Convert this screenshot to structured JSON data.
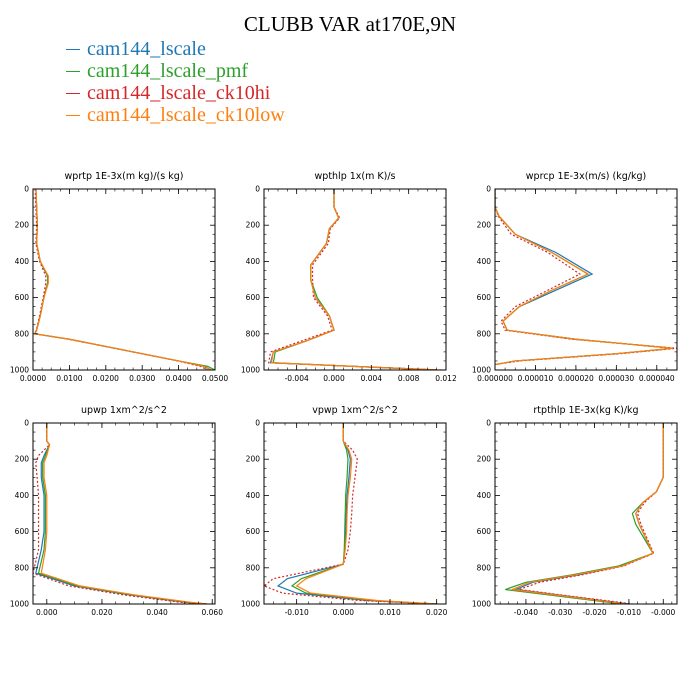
{
  "title": "CLUBB VAR at170E,9N",
  "legend": [
    {
      "name": "cam144_lscale",
      "color": "#1f77b4"
    },
    {
      "name": "cam144_lscale_pmf",
      "color": "#2ca02c"
    },
    {
      "name": "cam144_lscale_ck10hi",
      "color": "#d62728"
    },
    {
      "name": "cam144_lscale_ck10low",
      "color": "#ff7f0e"
    }
  ],
  "chart_data": [
    {
      "type": "line",
      "title": "wprtp  1E-3x(m kg)/(s kg)",
      "xlim": [
        0,
        0.05
      ],
      "ylim": [
        1000,
        0
      ],
      "xticks": [
        0,
        0.01,
        0.02,
        0.03,
        0.04,
        0.05
      ],
      "xtick_labels": [
        "0.0000",
        "0.0100",
        "0.0200",
        "0.0300",
        "0.0400",
        "0.0500"
      ],
      "yticks": [
        0,
        200,
        400,
        600,
        800,
        1000
      ],
      "ytick_labels": [
        "0",
        "200",
        "400",
        "600",
        "800",
        "1000"
      ],
      "series": [
        {
          "name": "cam144_lscale",
          "x": [
            0.0008,
            0.001,
            0.0012,
            0.001,
            0.002,
            0.004,
            0.004,
            0.003,
            0.002,
            0.001,
            0.0005,
            0.01,
            0.02,
            0.03,
            0.04,
            0.047,
            0.049
          ],
          "y": [
            0,
            100,
            200,
            300,
            400,
            480,
            520,
            600,
            700,
            780,
            800,
            830,
            870,
            910,
            950,
            980,
            1000
          ]
        },
        {
          "name": "cam144_lscale_pmf",
          "x": [
            0.0008,
            0.001,
            0.0012,
            0.001,
            0.002,
            0.004,
            0.004,
            0.003,
            0.002,
            0.001,
            0.0005,
            0.01,
            0.02,
            0.03,
            0.04,
            0.048,
            0.05
          ],
          "y": [
            0,
            100,
            200,
            300,
            400,
            480,
            520,
            600,
            700,
            780,
            800,
            830,
            870,
            910,
            950,
            980,
            1000
          ]
        },
        {
          "name": "cam144_lscale_ck10hi",
          "x": [
            0.0006,
            0.0008,
            0.001,
            0.0008,
            0.0018,
            0.0035,
            0.0035,
            0.0028,
            0.0018,
            0.0009,
            0.0004,
            0.0098,
            0.0198,
            0.0298,
            0.0398,
            0.046,
            0.048
          ],
          "y": [
            0,
            100,
            200,
            300,
            400,
            480,
            520,
            600,
            700,
            780,
            800,
            830,
            870,
            910,
            950,
            980,
            1000
          ]
        },
        {
          "name": "cam144_lscale_ck10low",
          "x": [
            0.0008,
            0.001,
            0.0012,
            0.001,
            0.002,
            0.0042,
            0.0042,
            0.003,
            0.002,
            0.001,
            0.0005,
            0.01,
            0.02,
            0.03,
            0.04,
            0.047,
            0.049
          ],
          "y": [
            0,
            100,
            200,
            300,
            400,
            480,
            520,
            600,
            700,
            780,
            800,
            830,
            870,
            910,
            950,
            980,
            1000
          ]
        }
      ]
    },
    {
      "type": "line",
      "title": "wpthlp  1x(m K)/s",
      "xlim": [
        -0.0075,
        0.012
      ],
      "ylim": [
        1000,
        0
      ],
      "xticks": [
        -0.004,
        0,
        0.004,
        0.008,
        0.012
      ],
      "xtick_labels": [
        "-0.004",
        "0.000",
        "0.004",
        "0.008",
        "0.012"
      ],
      "yticks": [
        0,
        200,
        400,
        600,
        800,
        1000
      ],
      "ytick_labels": [
        "0",
        "200",
        "400",
        "600",
        "800",
        "1000"
      ],
      "series": [
        {
          "name": "cam144_lscale",
          "x": [
            0,
            0,
            0.0005,
            -0.0005,
            -0.0008,
            -0.0025,
            -0.0025,
            -0.002,
            -0.0005,
            0,
            -0.003,
            -0.0065,
            -0.0068,
            0.011
          ],
          "y": [
            0,
            100,
            160,
            220,
            300,
            420,
            500,
            600,
            700,
            780,
            840,
            900,
            960,
            1000
          ]
        },
        {
          "name": "cam144_lscale_pmf",
          "x": [
            0,
            0,
            0.0005,
            -0.0005,
            -0.0008,
            -0.0025,
            -0.0025,
            -0.0018,
            -0.0005,
            0,
            -0.003,
            -0.0063,
            -0.0065,
            0.011
          ],
          "y": [
            0,
            100,
            160,
            220,
            300,
            420,
            500,
            600,
            700,
            780,
            840,
            900,
            960,
            1000
          ]
        },
        {
          "name": "cam144_lscale_ck10hi",
          "x": [
            0,
            0,
            0.0006,
            -0.0004,
            -0.0006,
            -0.0023,
            -0.0023,
            -0.0022,
            -0.0007,
            -0.0002,
            -0.0035,
            -0.0068,
            -0.007,
            0.0115
          ],
          "y": [
            0,
            100,
            160,
            220,
            300,
            420,
            500,
            600,
            700,
            780,
            840,
            900,
            960,
            1000
          ]
        },
        {
          "name": "cam144_lscale_ck10low",
          "x": [
            0,
            0,
            0.0005,
            -0.0005,
            -0.0008,
            -0.0025,
            -0.0025,
            -0.002,
            -0.0005,
            0,
            -0.003,
            -0.0065,
            -0.0067,
            0.011
          ],
          "y": [
            0,
            100,
            160,
            220,
            300,
            420,
            500,
            600,
            700,
            780,
            840,
            900,
            960,
            1000
          ]
        }
      ]
    },
    {
      "type": "line",
      "title": "wprcp  1E-3x(m/s) (kg/kg)",
      "xlim": [
        0,
        4.5e-05
      ],
      "ylim": [
        1000,
        0
      ],
      "xticks": [
        0,
        1e-05,
        2e-05,
        3e-05,
        4e-05
      ],
      "xtick_labels": [
        "0.000000",
        "0.000010",
        "0.000020",
        "0.000030",
        "0.000040"
      ],
      "yticks": [
        0,
        200,
        400,
        600,
        800,
        1000
      ],
      "ytick_labels": [
        "0",
        "200",
        "400",
        "600",
        "800",
        "1000"
      ],
      "series": [
        {
          "name": "cam144_lscale",
          "x": [
            0,
            0,
            1e-06,
            5e-06,
            1.5e-05,
            2.4e-05,
            1.5e-05,
            6e-06,
            2e-06,
            3e-06,
            2e-05,
            4.4e-05,
            3e-05,
            5e-06,
            0
          ],
          "y": [
            0,
            100,
            150,
            250,
            350,
            470,
            560,
            650,
            730,
            780,
            830,
            880,
            910,
            950,
            970
          ]
        },
        {
          "name": "cam144_lscale_pmf",
          "x": [
            0,
            0,
            1e-06,
            5e-06,
            1.4e-05,
            2.3e-05,
            1.4e-05,
            6e-06,
            2e-06,
            3e-06,
            2e-05,
            4.4e-05,
            3e-05,
            5e-06,
            0
          ],
          "y": [
            0,
            100,
            150,
            250,
            350,
            470,
            560,
            650,
            730,
            780,
            830,
            880,
            910,
            950,
            970
          ]
        },
        {
          "name": "cam144_lscale_ck10hi",
          "x": [
            0,
            0,
            8e-07,
            4e-06,
            1.3e-05,
            2.1e-05,
            1.3e-05,
            5e-06,
            1.5e-06,
            2.5e-06,
            1.9e-05,
            4.5e-05,
            3.1e-05,
            6e-06,
            0
          ],
          "y": [
            0,
            100,
            150,
            250,
            350,
            470,
            560,
            650,
            730,
            780,
            830,
            880,
            910,
            950,
            970
          ]
        },
        {
          "name": "cam144_lscale_ck10low",
          "x": [
            0,
            0,
            1e-06,
            5e-06,
            1.4e-05,
            2.3e-05,
            1.4e-05,
            6e-06,
            2e-06,
            3e-06,
            2e-05,
            4.4e-05,
            3e-05,
            5e-06,
            0
          ],
          "y": [
            0,
            100,
            150,
            250,
            350,
            470,
            560,
            650,
            730,
            780,
            830,
            880,
            910,
            950,
            970
          ]
        }
      ]
    },
    {
      "type": "line",
      "title": "upwp  1xm^2/s^2",
      "xlim": [
        -0.005,
        0.061
      ],
      "ylim": [
        1000,
        0
      ],
      "xticks": [
        0,
        0.02,
        0.04,
        0.06
      ],
      "xtick_labels": [
        "0.000",
        "0.020",
        "0.040",
        "0.060"
      ],
      "yticks": [
        0,
        200,
        400,
        600,
        800,
        1000
      ],
      "ytick_labels": [
        "0",
        "200",
        "400",
        "600",
        "800",
        "1000"
      ],
      "series": [
        {
          "name": "cam144_lscale",
          "x": [
            0,
            0,
            0.001,
            -0.001,
            -0.002,
            -0.002,
            -0.001,
            -0.001,
            -0.001,
            -0.002,
            -0.004,
            0.01,
            0.03,
            0.05,
            0.058
          ],
          "y": [
            0,
            100,
            120,
            180,
            220,
            300,
            400,
            500,
            600,
            700,
            830,
            900,
            950,
            990,
            1000
          ]
        },
        {
          "name": "cam144_lscale_pmf",
          "x": [
            0,
            0,
            0.001,
            -0.0005,
            -0.0015,
            -0.0015,
            -0.0005,
            -0.0005,
            -0.0005,
            -0.001,
            -0.003,
            0.011,
            0.031,
            0.051,
            0.058
          ],
          "y": [
            0,
            100,
            120,
            180,
            220,
            300,
            400,
            500,
            600,
            700,
            830,
            900,
            950,
            990,
            1000
          ]
        },
        {
          "name": "cam144_lscale_ck10hi",
          "x": [
            0,
            0,
            0.001,
            -0.003,
            -0.004,
            -0.0035,
            -0.003,
            -0.003,
            -0.003,
            -0.003,
            -0.005,
            0.008,
            0.028,
            0.048,
            0.058
          ],
          "y": [
            0,
            100,
            120,
            180,
            220,
            300,
            400,
            500,
            600,
            700,
            830,
            900,
            950,
            990,
            1000
          ]
        },
        {
          "name": "cam144_lscale_ck10low",
          "x": [
            0,
            0,
            0.001,
            0,
            -0.001,
            -0.001,
            0,
            0,
            0,
            -0.0005,
            -0.002,
            0.012,
            0.032,
            0.052,
            0.058
          ],
          "y": [
            0,
            100,
            120,
            180,
            220,
            300,
            400,
            500,
            600,
            700,
            830,
            900,
            950,
            990,
            1000
          ]
        }
      ]
    },
    {
      "type": "line",
      "title": "vpwp  1xm^2/s^2",
      "xlim": [
        -0.017,
        0.022
      ],
      "ylim": [
        1000,
        0
      ],
      "xticks": [
        -0.01,
        0,
        0.01,
        0.02
      ],
      "xtick_labels": [
        "-0.010",
        "0.000",
        "0.010",
        "0.020"
      ],
      "yticks": [
        0,
        200,
        400,
        600,
        800,
        1000
      ],
      "ytick_labels": [
        "0",
        "200",
        "400",
        "600",
        "800",
        "1000"
      ],
      "series": [
        {
          "name": "cam144_lscale",
          "x": [
            0,
            0,
            0.001,
            0.0015,
            0.0012,
            0.0008,
            0.0006,
            0.0005,
            0.0003,
            0,
            -0.012,
            -0.014,
            -0.01,
            0.005,
            0.02
          ],
          "y": [
            0,
            100,
            150,
            200,
            300,
            400,
            500,
            600,
            700,
            780,
            860,
            900,
            940,
            980,
            1000
          ]
        },
        {
          "name": "cam144_lscale_pmf",
          "x": [
            0,
            0,
            0.0007,
            0.001,
            0.0008,
            0.0005,
            0.0004,
            0.0003,
            0.0002,
            0,
            -0.009,
            -0.011,
            -0.008,
            0.006,
            0.02
          ],
          "y": [
            0,
            100,
            150,
            200,
            300,
            400,
            500,
            600,
            700,
            780,
            860,
            900,
            940,
            980,
            1000
          ]
        },
        {
          "name": "cam144_lscale_ck10hi",
          "x": [
            0,
            0,
            0.002,
            0.003,
            0.0025,
            0.002,
            0.0018,
            0.0015,
            0.001,
            0,
            -0.015,
            -0.017,
            -0.013,
            0.003,
            0.02
          ],
          "y": [
            0,
            100,
            150,
            200,
            300,
            400,
            500,
            600,
            700,
            780,
            860,
            900,
            940,
            980,
            1000
          ]
        },
        {
          "name": "cam144_lscale_ck10low",
          "x": [
            0,
            0,
            0.0012,
            0.0018,
            0.0015,
            0.001,
            0.0008,
            0.0007,
            0.0004,
            0,
            -0.008,
            -0.01,
            -0.007,
            0.007,
            0.02
          ],
          "y": [
            0,
            100,
            150,
            200,
            300,
            400,
            500,
            600,
            700,
            780,
            860,
            900,
            940,
            980,
            1000
          ]
        }
      ]
    },
    {
      "type": "line",
      "title": "rtpthlp  1E-3x(kg K)/kg",
      "xlim": [
        -0.049,
        0.004
      ],
      "ylim": [
        1000,
        0
      ],
      "xticks": [
        -0.04,
        -0.03,
        -0.02,
        -0.01,
        0
      ],
      "xtick_labels": [
        "-0.040",
        "-0.030",
        "-0.020",
        "-0.010",
        "-0.000"
      ],
      "yticks": [
        0,
        200,
        400,
        600,
        800,
        1000
      ],
      "ytick_labels": [
        "0",
        "200",
        "400",
        "600",
        "800",
        "1000"
      ],
      "series": [
        {
          "name": "cam144_lscale",
          "x": [
            0,
            0,
            0,
            -0.002,
            -0.006,
            -0.008,
            -0.007,
            -0.003,
            -0.012,
            -0.025,
            -0.038,
            -0.043,
            -0.01
          ],
          "y": [
            0,
            200,
            300,
            380,
            440,
            500,
            560,
            720,
            790,
            840,
            880,
            920,
            1000
          ]
        },
        {
          "name": "cam144_lscale_pmf",
          "x": [
            0,
            0,
            0,
            -0.002,
            -0.006,
            -0.009,
            -0.008,
            -0.003,
            -0.013,
            -0.027,
            -0.04,
            -0.046,
            -0.012
          ],
          "y": [
            0,
            200,
            300,
            380,
            440,
            500,
            560,
            720,
            790,
            840,
            880,
            920,
            1000
          ]
        },
        {
          "name": "cam144_lscale_ck10hi",
          "x": [
            0,
            0,
            0,
            -0.002,
            -0.0055,
            -0.0075,
            -0.0065,
            -0.0028,
            -0.0115,
            -0.024,
            -0.036,
            -0.042,
            -0.009
          ],
          "y": [
            0,
            200,
            300,
            380,
            440,
            500,
            560,
            720,
            790,
            840,
            880,
            920,
            1000
          ]
        },
        {
          "name": "cam144_lscale_ck10low",
          "x": [
            0,
            0,
            0,
            -0.002,
            -0.006,
            -0.008,
            -0.007,
            -0.003,
            -0.012,
            -0.026,
            -0.039,
            -0.044,
            -0.011
          ],
          "y": [
            0,
            200,
            300,
            380,
            440,
            500,
            560,
            720,
            790,
            840,
            880,
            920,
            1000
          ]
        }
      ]
    }
  ]
}
